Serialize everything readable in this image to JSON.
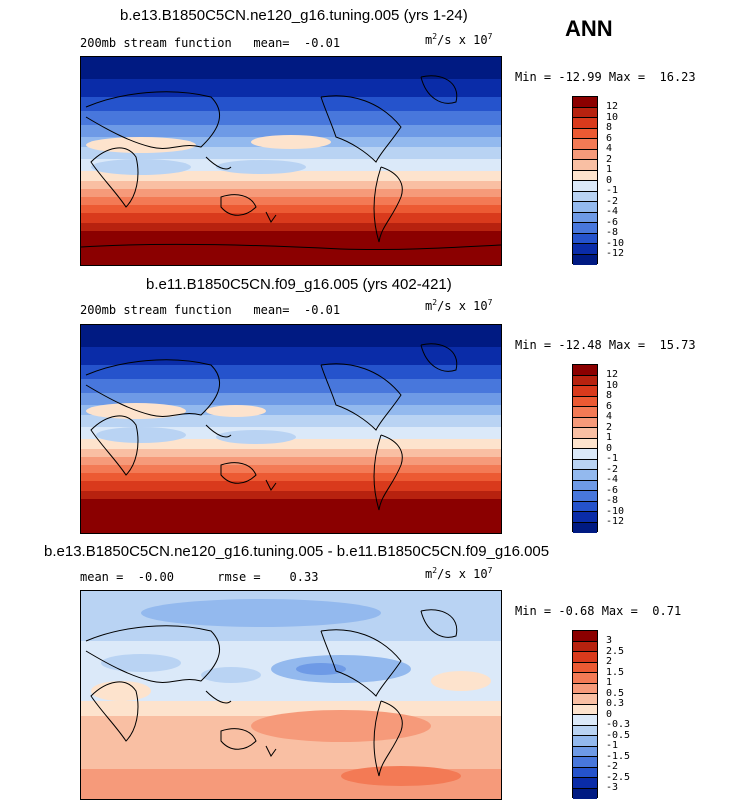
{
  "season": "ANN",
  "panels": [
    {
      "title": "b.e13.B1850C5CN.ne120_g16.tuning.005 (yrs 1-24)",
      "subtitle": "200mb stream function   mean=  -0.01",
      "units_base": "m",
      "units_mid": "/s x 10",
      "units_exp1": "2",
      "units_exp2": "7",
      "minmax": "Min = -12.99 Max =  16.23",
      "labels": [
        "12",
        "10",
        "8",
        "6",
        "4",
        "2",
        "1",
        "0",
        "-1",
        "-2",
        "-4",
        "-6",
        "-8",
        "-10",
        "-12"
      ],
      "colors": [
        "#8b0000",
        "#b7220f",
        "#d93a1c",
        "#ec5a33",
        "#f37a55",
        "#f69a7a",
        "#f9bfa3",
        "#fde3cd",
        "#dbe9f9",
        "#b9d3f3",
        "#93b9ee",
        "#6e9ae6",
        "#4877dc",
        "#2553cc",
        "#0a2ca8",
        "#001a82"
      ]
    },
    {
      "title": "b.e11.B1850C5CN.f09_g16.005 (yrs 402-421)",
      "subtitle": "200mb stream function   mean=  -0.01",
      "units_base": "m",
      "units_mid": "/s x 10",
      "units_exp1": "2",
      "units_exp2": "7",
      "minmax": "Min = -12.48 Max =  15.73",
      "labels": [
        "12",
        "10",
        "8",
        "6",
        "4",
        "2",
        "1",
        "0",
        "-1",
        "-2",
        "-4",
        "-6",
        "-8",
        "-10",
        "-12"
      ],
      "colors": [
        "#8b0000",
        "#b7220f",
        "#d93a1c",
        "#ec5a33",
        "#f37a55",
        "#f69a7a",
        "#f9bfa3",
        "#fde3cd",
        "#dbe9f9",
        "#b9d3f3",
        "#93b9ee",
        "#6e9ae6",
        "#4877dc",
        "#2553cc",
        "#0a2ca8",
        "#001a82"
      ]
    },
    {
      "title": "b.e13.B1850C5CN.ne120_g16.tuning.005 - b.e11.B1850C5CN.f09_g16.005",
      "subtitle": "mean =  -0.00      rmse =    0.33",
      "units_base": "m",
      "units_mid": "/s x 10",
      "units_exp1": "2",
      "units_exp2": "7",
      "minmax": "Min = -0.68 Max =  0.71",
      "labels": [
        "3",
        "2.5",
        "2",
        "1.5",
        "1",
        "0.5",
        "0.3",
        "0",
        "-0.3",
        "-0.5",
        "-1",
        "-1.5",
        "-2",
        "-2.5",
        "-3"
      ],
      "colors": [
        "#8b0000",
        "#b7220f",
        "#d93a1c",
        "#ec5a33",
        "#f37a55",
        "#f69a7a",
        "#f9bfa3",
        "#fde3cd",
        "#dbe9f9",
        "#b9d3f3",
        "#93b9ee",
        "#6e9ae6",
        "#4877dc",
        "#2553cc",
        "#0a2ca8",
        "#001a82"
      ]
    }
  ]
}
